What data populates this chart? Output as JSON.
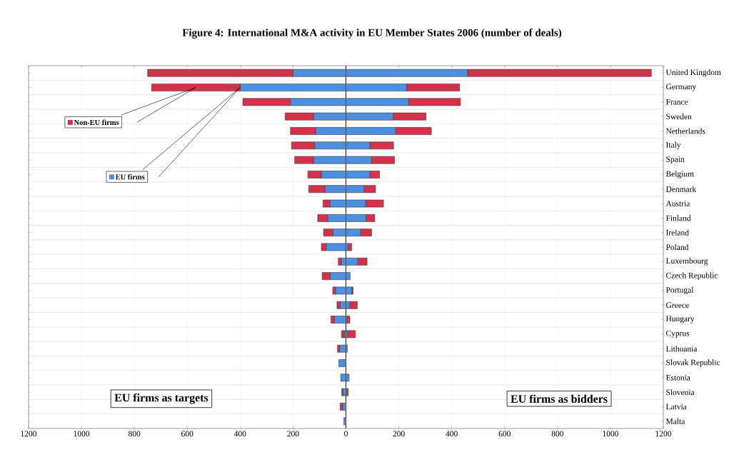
{
  "chart_data": {
    "type": "bar",
    "orientation": "horizontal",
    "stacked": true,
    "title": "Figure 4: International M&A activity in EU Member States 2006 (number of deals)",
    "categories": [
      "United Kingdom",
      "Germany",
      "France",
      "Sweden",
      "Netherlands",
      "Italy",
      "Spain",
      "Belgium",
      "Denmark",
      "Austria",
      "Finland",
      "Ireland",
      "Poland",
      "Luxembourg",
      "Czech Republic",
      "Portugal",
      "Greece",
      "Hungary",
      "Cyprus",
      "Lithuania",
      "Slovak Republic",
      "Estonia",
      "Slovenia",
      "Latvia",
      "Malta"
    ],
    "series": [
      {
        "name": "EU firms",
        "color": "#4a8fe0",
        "values": [
          -200,
          -400,
          -210,
          -123,
          -114,
          -119,
          -122,
          -93,
          -79,
          -60,
          -69,
          -49,
          -75,
          -18,
          -60,
          -39,
          -22,
          -44,
          -6,
          -24,
          -27,
          -20,
          -11,
          -13,
          -8
        ]
      },
      {
        "name": "Non-EU firms",
        "color": "#d6304a",
        "values": [
          -550,
          -335,
          -180,
          -107,
          -96,
          -87,
          -72,
          -51,
          -62,
          -27,
          -38,
          -36,
          -18,
          -11,
          -30,
          -11,
          -12,
          -13,
          -11,
          -8,
          null,
          null,
          -5,
          -9,
          null
        ]
      },
      {
        "color": "#4a8fe0",
        "values": [
          460,
          230,
          237,
          179,
          188,
          91,
          97,
          91,
          69,
          75,
          76,
          56,
          8,
          45,
          16,
          23,
          15,
          5,
          7,
          5,
          null,
          12,
          5,
          null,
          null
        ]
      },
      {
        "color": "#d6304a",
        "values": [
          695,
          200,
          196,
          124,
          135,
          89,
          87,
          36,
          43,
          67,
          33,
          41,
          14,
          35,
          null,
          4,
          28,
          10,
          29,
          null,
          null,
          null,
          4,
          null,
          null
        ]
      }
    ],
    "xlim": [
      -1200,
      1200
    ],
    "xticks": [
      {
        "value": -1200,
        "label": "1200"
      },
      {
        "value": -1000,
        "label": "1000"
      },
      {
        "value": -800,
        "label": "800"
      },
      {
        "value": -600,
        "label": "600"
      },
      {
        "value": -400,
        "label": "400"
      },
      {
        "value": -200,
        "label": "200"
      },
      0,
      200,
      400,
      600,
      800,
      1000,
      1200
    ],
    "grid": true,
    "legend": "top left",
    "annotations": [
      "EU firms as targets",
      "EU firms as bidders"
    ]
  }
}
